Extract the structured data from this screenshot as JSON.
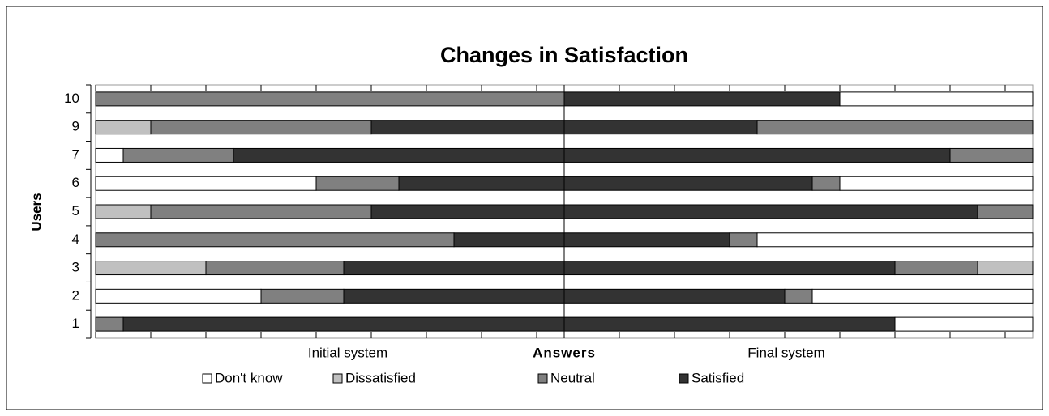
{
  "chart_data": {
    "type": "diverging_bar",
    "title": "Changes in Satisfaction",
    "xlabel": "Answers",
    "ylabel": "Users",
    "categories": [
      "1",
      "2",
      "3",
      "4",
      "5",
      "6",
      "7",
      "9",
      "10"
    ],
    "groups": [
      "Initial system",
      "Final system"
    ],
    "xlim": [
      0,
      17
    ],
    "xticks": [
      0,
      2,
      4,
      6,
      8,
      10,
      12,
      14,
      16
    ],
    "series": [
      {
        "name": "Don't know",
        "color": "#ffffff",
        "values": [
          [
            0,
            5
          ],
          [
            6,
            8
          ],
          [
            0,
            0
          ],
          [
            0,
            10
          ],
          [
            0,
            0
          ],
          [
            8,
            7
          ],
          [
            1,
            0
          ],
          [
            0,
            0
          ],
          [
            0,
            7
          ]
        ]
      },
      {
        "name": "Dissatisfied",
        "color": "#c0c0c0",
        "values": [
          [
            0,
            0
          ],
          [
            0,
            0
          ],
          [
            4,
            2
          ],
          [
            0,
            0
          ],
          [
            2,
            0
          ],
          [
            0,
            0
          ],
          [
            0,
            0
          ],
          [
            2,
            0
          ],
          [
            0,
            0
          ]
        ]
      },
      {
        "name": "Neutral",
        "color": "#808080",
        "values": [
          [
            1,
            0
          ],
          [
            3,
            1
          ],
          [
            5,
            3
          ],
          [
            13,
            1
          ],
          [
            8,
            2
          ],
          [
            3,
            1
          ],
          [
            4,
            3
          ],
          [
            8,
            10
          ],
          [
            17,
            0
          ]
        ]
      },
      {
        "name": "Satisfied",
        "color": "#333333",
        "values": [
          [
            16,
            12
          ],
          [
            8,
            8
          ],
          [
            8,
            12
          ],
          [
            4,
            6
          ],
          [
            7,
            15
          ],
          [
            6,
            9
          ],
          [
            12,
            14
          ],
          [
            7,
            7
          ],
          [
            0,
            10
          ]
        ]
      }
    ]
  }
}
